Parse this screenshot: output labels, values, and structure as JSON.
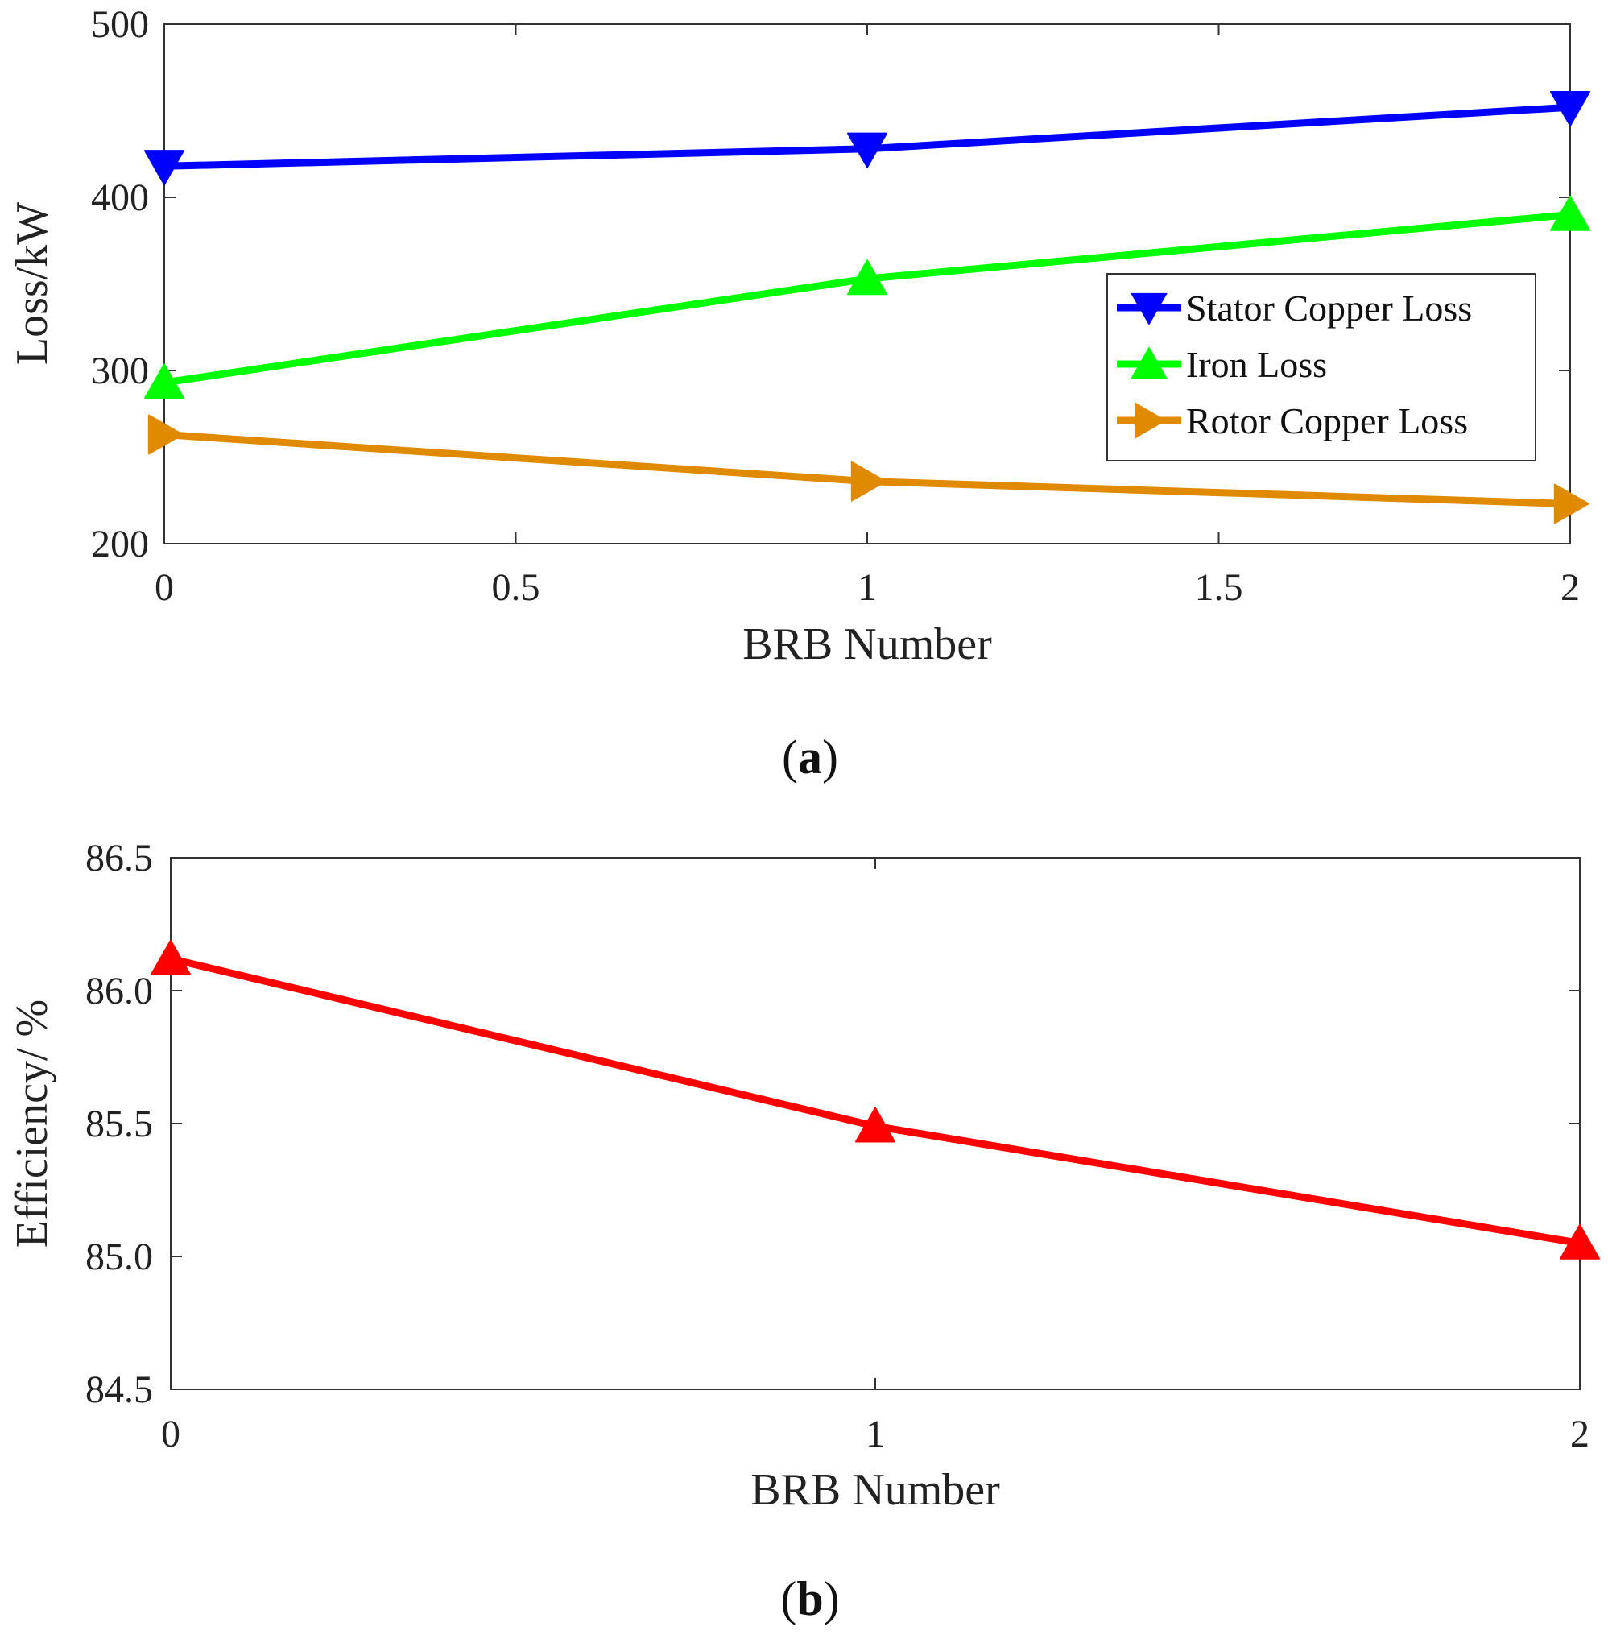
{
  "chart_data": [
    {
      "type": "line",
      "panel": "a",
      "caption_letter": "a",
      "caption_open": "(",
      "caption_close": ")",
      "xlabel": "BRB Number",
      "ylabel": "Loss/kW",
      "xlim": [
        0,
        2
      ],
      "ylim": [
        200,
        500
      ],
      "xticks": [
        0,
        0.5,
        1,
        1.5,
        2
      ],
      "xtick_labels": [
        "0",
        "0.5",
        "1",
        "1.5",
        "2"
      ],
      "yticks": [
        200,
        300,
        400,
        500
      ],
      "ytick_labels": [
        "200",
        "300",
        "400",
        "500"
      ],
      "x": [
        0,
        1,
        2
      ],
      "legend_position": "right",
      "series": [
        {
          "name": "Stator Copper Loss",
          "values": [
            418,
            428,
            452
          ],
          "color": "#0000ff",
          "marker": "triangle-down"
        },
        {
          "name": "Iron Loss",
          "values": [
            293,
            353,
            390
          ],
          "color": "#00ff00",
          "marker": "triangle-up"
        },
        {
          "name": "Rotor Copper Loss",
          "values": [
            263,
            236,
            223
          ],
          "color": "#e08a00",
          "marker": "triangle-right"
        }
      ]
    },
    {
      "type": "line",
      "panel": "b",
      "caption_letter": "b",
      "caption_open": "(",
      "caption_close": ")",
      "xlabel": "BRB Number",
      "ylabel": "Efficiency/ %",
      "xlim": [
        0,
        2
      ],
      "ylim": [
        84.5,
        86.5
      ],
      "xticks": [
        0,
        1,
        2
      ],
      "xtick_labels": [
        "0",
        "1",
        "2"
      ],
      "yticks": [
        84.5,
        85.0,
        85.5,
        86.0,
        86.5
      ],
      "ytick_labels": [
        "84.5",
        "85.0",
        "85.5",
        "86.0",
        "86.5"
      ],
      "x": [
        0,
        1,
        2
      ],
      "series": [
        {
          "name": "Efficiency",
          "values": [
            86.12,
            85.49,
            85.05
          ],
          "color": "#ff0000",
          "marker": "triangle-up"
        }
      ]
    }
  ]
}
